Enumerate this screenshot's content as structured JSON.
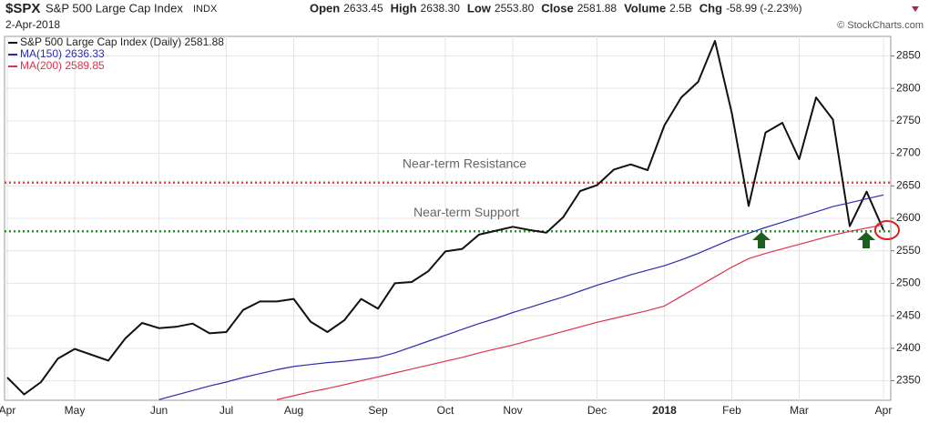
{
  "chart_data": {
    "type": "line",
    "header": {
      "symbol": "$SPX",
      "name": "S&P 500 Large Cap Index",
      "exchange": "INDX",
      "date": "2-Apr-2018",
      "stats": [
        {
          "label": "Open",
          "value": "2633.45"
        },
        {
          "label": "High",
          "value": "2638.30"
        },
        {
          "label": "Low",
          "value": "2553.80"
        },
        {
          "label": "Close",
          "value": "2581.88"
        },
        {
          "label": "Volume",
          "value": "2.5B"
        },
        {
          "label": "Chg",
          "value": "-58.99 (-2.23%)"
        }
      ],
      "credit": "© StockCharts.com"
    },
    "categories": [
      "Apr",
      null,
      null,
      null,
      "May",
      null,
      null,
      null,
      null,
      "Jun",
      null,
      null,
      null,
      "Jul",
      null,
      null,
      null,
      "Aug",
      null,
      null,
      null,
      null,
      "Sep",
      null,
      null,
      null,
      "Oct",
      null,
      null,
      null,
      "Nov",
      null,
      null,
      null,
      null,
      "Dec",
      null,
      null,
      null,
      "2018",
      null,
      null,
      null,
      "Feb",
      null,
      null,
      null,
      "Mar",
      null,
      null,
      null,
      null,
      "Apr"
    ],
    "series": [
      {
        "name": "S&P 500 Large Cap Index (Daily) 2581.88",
        "color": "#111111",
        "values": [
          2355,
          2329,
          2348,
          2384,
          2399,
          2390,
          2381,
          2415,
          2439,
          2431,
          2433,
          2438,
          2423,
          2425,
          2459,
          2472,
          2472,
          2476,
          2441,
          2425,
          2443,
          2476,
          2461,
          2500,
          2502,
          2519,
          2549,
          2553,
          2575,
          2581,
          2587,
          2582,
          2578,
          2602,
          2642,
          2651,
          2675,
          2683,
          2674,
          2743,
          2786,
          2810,
          2873,
          2762,
          2619,
          2732,
          2747,
          2691,
          2786,
          2752,
          2588,
          2641,
          2582
        ]
      },
      {
        "name": "MA(150) 2636.33",
        "color": "#2b2bb0",
        "values": [
          null,
          null,
          null,
          null,
          null,
          null,
          null,
          null,
          null,
          2321,
          2328,
          2335,
          2342,
          2348,
          2355,
          2361,
          2367,
          2372,
          2375,
          2378,
          2380,
          2383,
          2386,
          2393,
          2402,
          2411,
          2420,
          2429,
          2438,
          2446,
          2455,
          2463,
          2471,
          2479,
          2488,
          2497,
          2505,
          2513,
          2520,
          2527,
          2536,
          2546,
          2557,
          2568,
          2577,
          2586,
          2594,
          2602,
          2610,
          2618,
          2624,
          2630,
          2636
        ]
      },
      {
        "name": "MA(200) 2589.85",
        "color": "#e0304a",
        "values": [
          null,
          null,
          null,
          null,
          null,
          null,
          null,
          null,
          null,
          null,
          null,
          null,
          null,
          null,
          null,
          null,
          2321,
          2327,
          2333,
          2338,
          2344,
          2350,
          2356,
          2362,
          2368,
          2374,
          2380,
          2386,
          2393,
          2399,
          2405,
          2412,
          2419,
          2426,
          2433,
          2440,
          2446,
          2452,
          2458,
          2465,
          2480,
          2495,
          2510,
          2525,
          2538,
          2546,
          2553,
          2560,
          2567,
          2574,
          2580,
          2585,
          2590
        ]
      }
    ],
    "reference_lines": [
      {
        "label": "Near-term Resistance",
        "value": 2655,
        "color": "#e8403a"
      },
      {
        "label": "Near-term Support",
        "value": 2580,
        "color": "#1d9a1d"
      }
    ],
    "ylim": [
      2320,
      2880
    ],
    "yticks": [
      2350,
      2400,
      2450,
      2500,
      2550,
      2600,
      2650,
      2700,
      2750,
      2800,
      2850
    ],
    "grid": true
  }
}
